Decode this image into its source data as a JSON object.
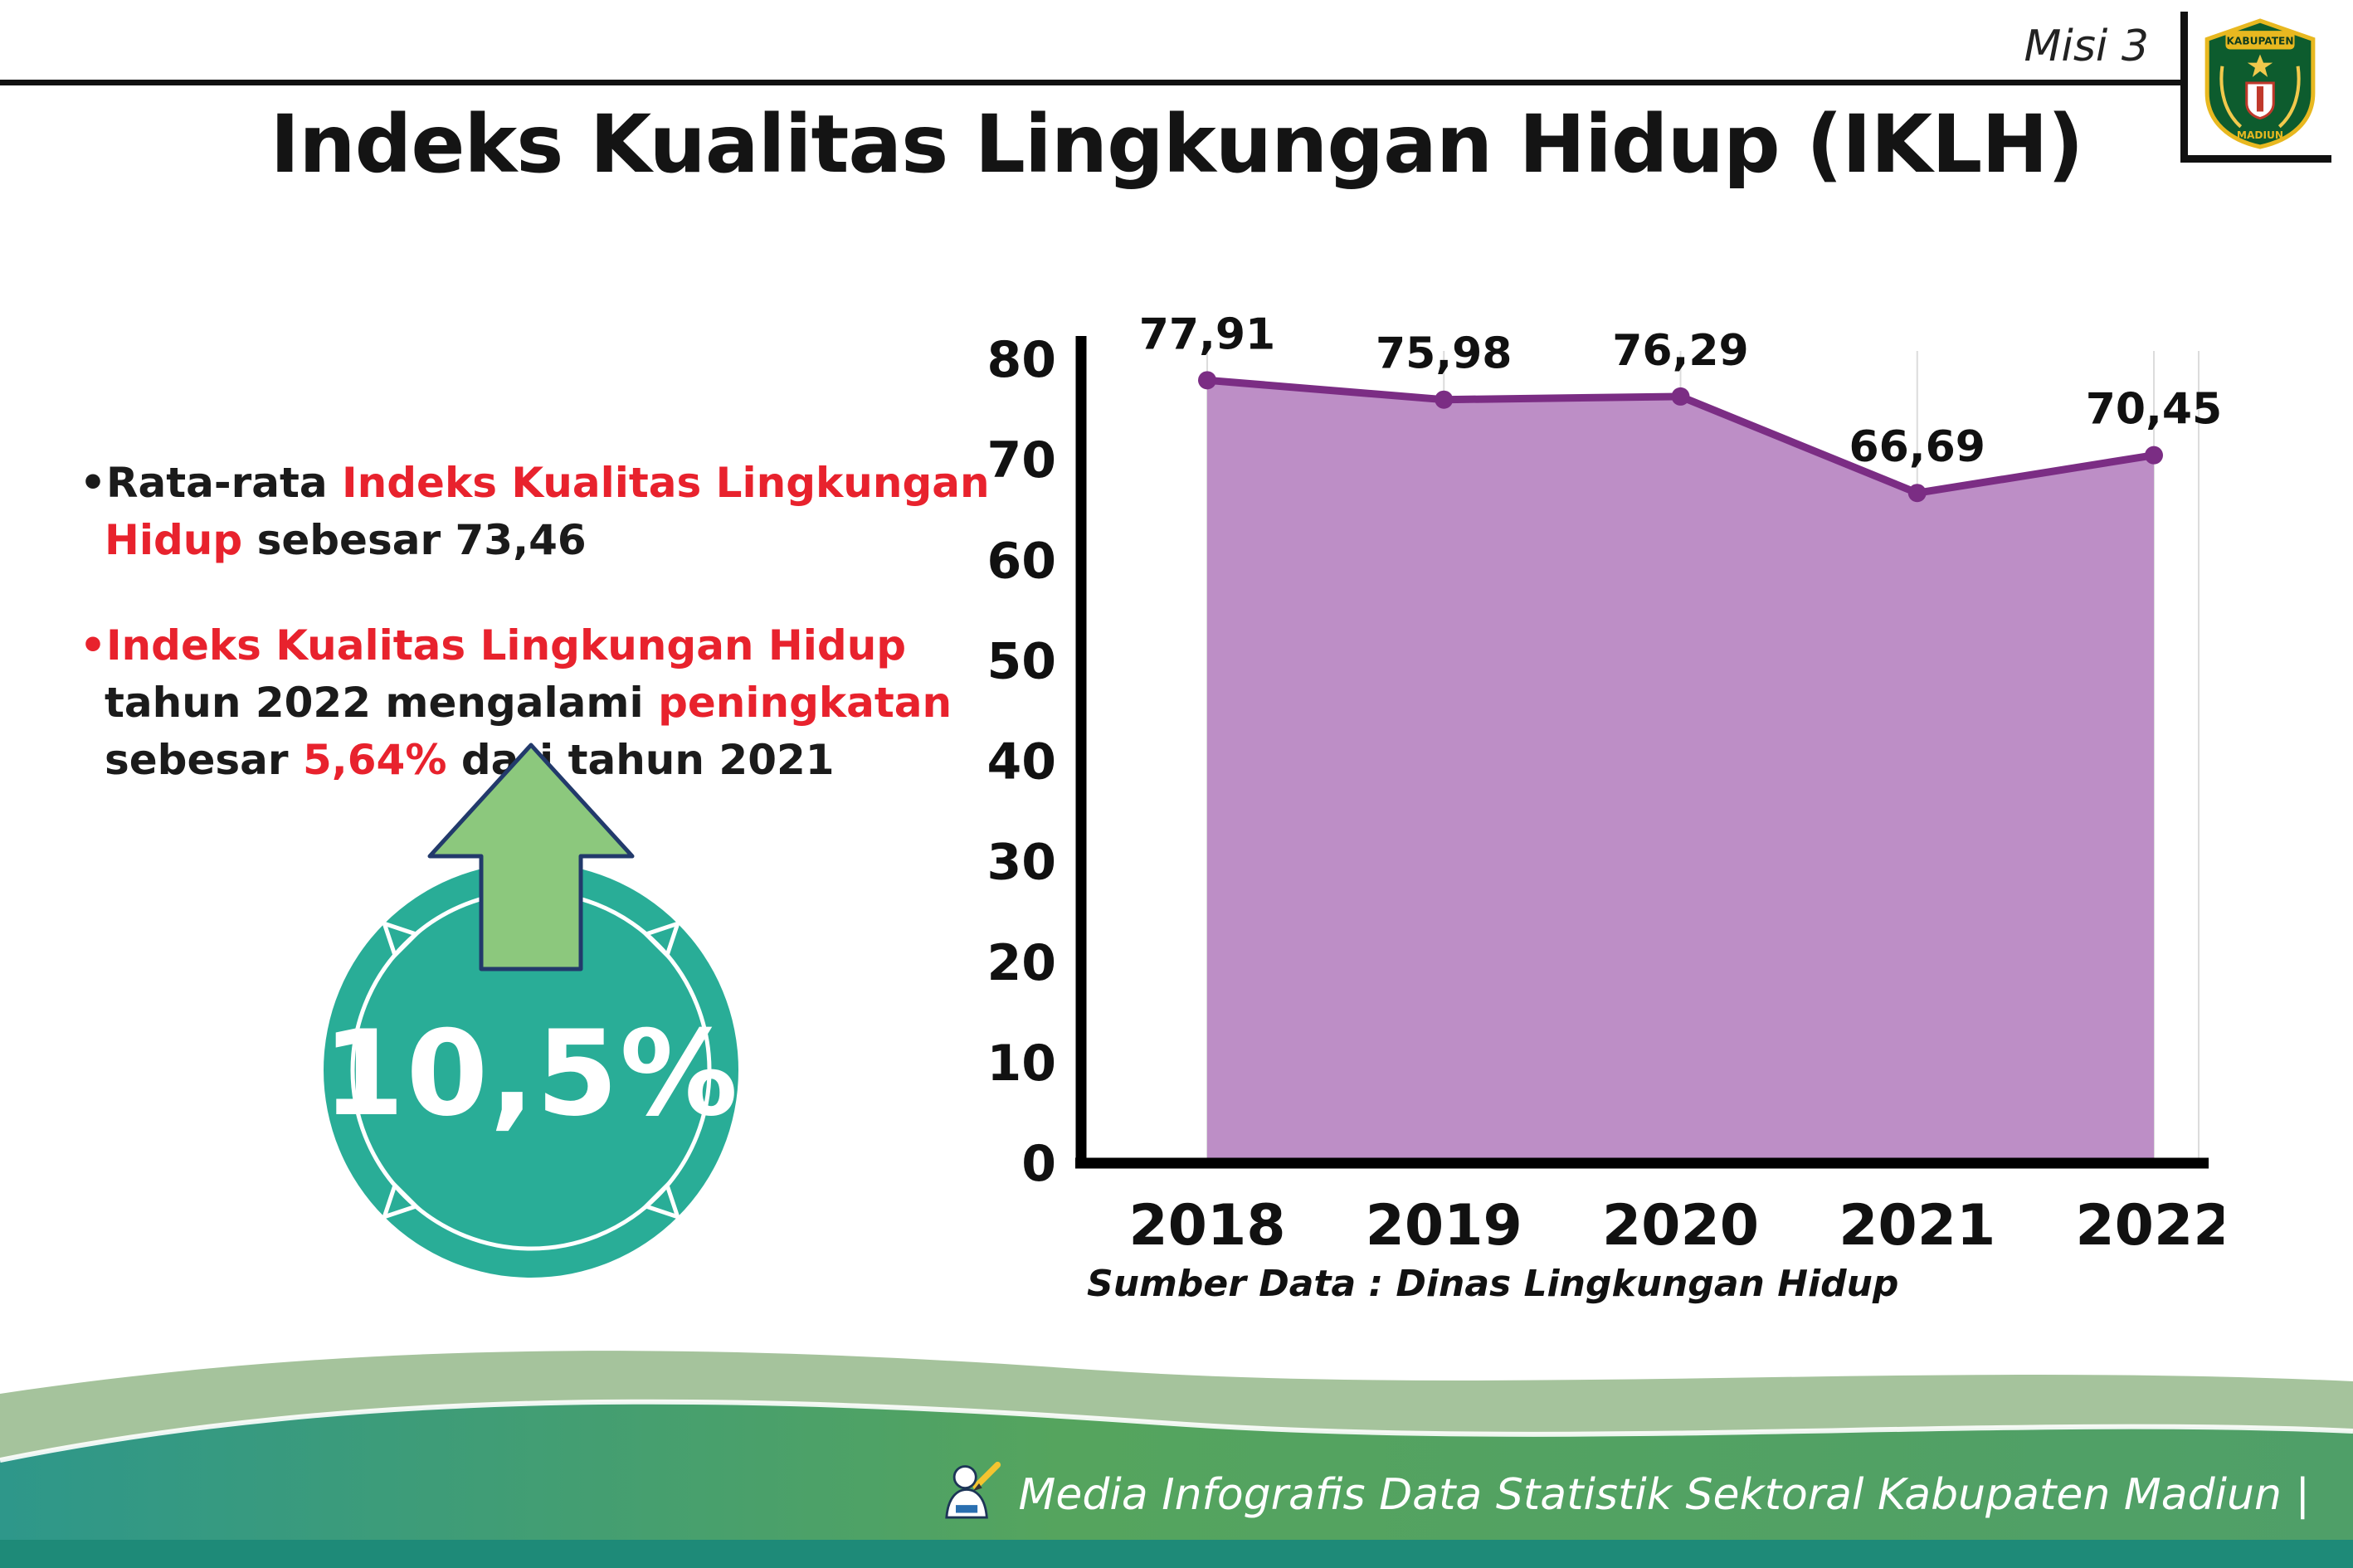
{
  "page": {
    "misi_label": "Misi 3",
    "title": "Indeks Kualitas Lingkungan Hidup (IKLH)"
  },
  "logo": {
    "text_top": "KABUPATEN",
    "text_bottom": "MADIUN"
  },
  "bullets": {
    "b1": {
      "s1": "•Rata-rata ",
      "s2": "Indeks Kualitas Lingkungan Hidup",
      "s3": " sebesar 73,46"
    },
    "b2": {
      "s1": "•Indeks Kualitas Lingkungan Hidup",
      "s2": " tahun 2022 mengalami ",
      "s3": "peningkatan",
      "s4": " sebesar ",
      "s5": "5,64%",
      "s6": " dari tahun 2021"
    }
  },
  "badge": {
    "value": "10,5%"
  },
  "chart_data": {
    "type": "area",
    "title": "Indeks Kualitas Lingkungan Hidup (IKLH)",
    "categories": [
      "2018",
      "2019",
      "2020",
      "2021",
      "2022"
    ],
    "values": [
      77.91,
      75.98,
      76.29,
      66.69,
      70.45
    ],
    "point_labels": [
      "77,91",
      "75,98",
      "76,29",
      "66,69",
      "70,45"
    ],
    "xlabel": "",
    "ylabel": "",
    "ylim": [
      0,
      80
    ],
    "yticks": [
      0,
      10,
      20,
      30,
      40,
      50,
      60,
      70,
      80
    ],
    "grid": "vertical-light",
    "legend": "none",
    "area_fill": "#bd8ec6",
    "line_color": "#7b2d84",
    "source": "Sumber Data : Dinas Lingkungan Hidup"
  },
  "footer": {
    "credit": "Media Infografis Data Statistik Sektoral Kabupaten Madiun |"
  },
  "colors": {
    "accent_red": "#e8222d",
    "badge_teal": "#29ad97",
    "arrow_green": "#8cc87d",
    "footer_teal": "#2e978a",
    "footer_green": "#55a45e",
    "footer_strip": "#1e8a78"
  }
}
